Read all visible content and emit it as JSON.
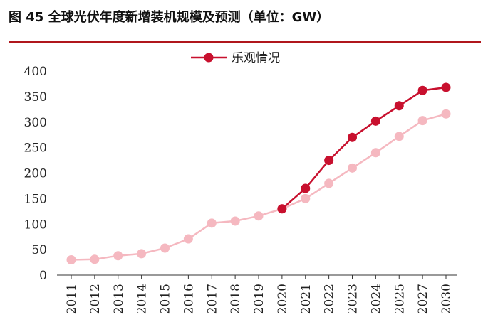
{
  "figure": {
    "title": "图 45 全球光伏年度新增装机规模及预测（单位：GW）"
  },
  "colors": {
    "accent": "#b0161c",
    "optimistic": "#c8102e",
    "baseline": "#f5b8c0",
    "axis": "#333333"
  },
  "chart_data": {
    "type": "line",
    "title": "",
    "xlabel": "",
    "ylabel": "",
    "categories": [
      "2011",
      "2012",
      "2013",
      "2014",
      "2015",
      "2016",
      "2017",
      "2018",
      "2019",
      "2020",
      "2021",
      "2022",
      "2023",
      "2024",
      "2025",
      "2027",
      "2030"
    ],
    "ylim": [
      0,
      400
    ],
    "yticks": [
      0,
      50,
      100,
      150,
      200,
      250,
      300,
      350,
      400
    ],
    "grid": false,
    "legend_position": "top-center",
    "series": [
      {
        "key": "baseline",
        "name": "",
        "color": "#f5b8c0",
        "values": [
          30,
          31,
          38,
          42,
          53,
          71,
          102,
          106,
          116,
          130,
          150,
          180,
          210,
          240,
          272,
          303,
          316
        ]
      },
      {
        "key": "optimistic",
        "name": "乐观情况",
        "color": "#c8102e",
        "values": [
          null,
          null,
          null,
          null,
          null,
          null,
          null,
          null,
          null,
          130,
          170,
          225,
          270,
          302,
          332,
          362,
          368
        ]
      }
    ]
  }
}
